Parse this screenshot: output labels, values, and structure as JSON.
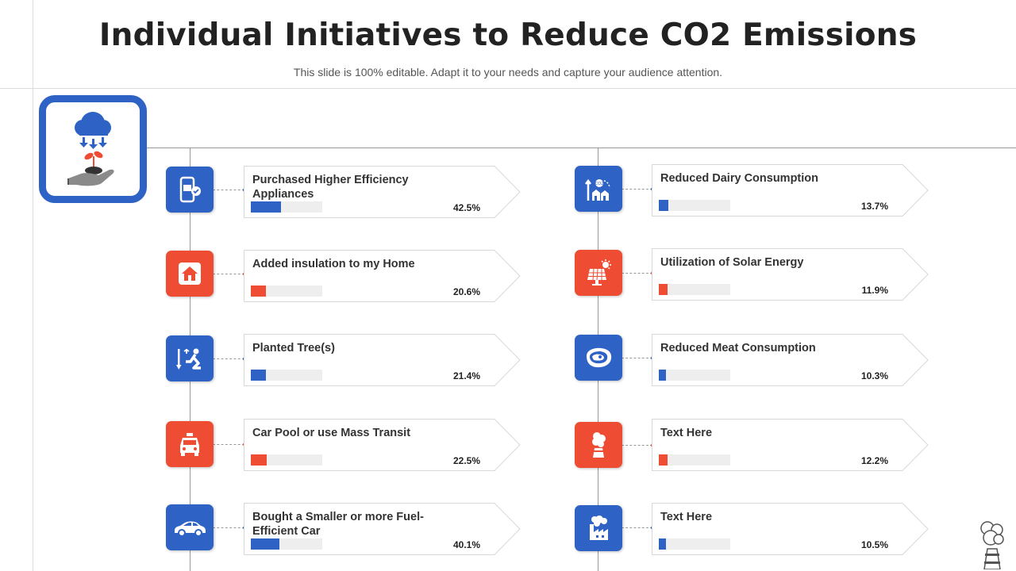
{
  "header": {
    "title": "Individual Initiatives to Reduce CO2 Emissions",
    "subtitle": "This slide is 100% editable. Adapt it to your needs and capture your audience attention."
  },
  "colors": {
    "blue": "#2e62c4",
    "red": "#ee4d34",
    "track": "#eeeeee"
  },
  "hero": {
    "icon": "cloud-rain-plant-hand-icon"
  },
  "initiatives": [
    {
      "label": "Purchased Higher Efficiency Appliances",
      "value": 42.5,
      "percent": "42.5%",
      "color": "blue",
      "icon": "smartphone-icon"
    },
    {
      "label": "Added insulation to my Home",
      "value": 20.6,
      "percent": "20.6%",
      "color": "red",
      "icon": "home-icon"
    },
    {
      "label": "Planted Tree(s)",
      "value": 21.4,
      "percent": "21.4%",
      "color": "blue",
      "icon": "planting-tree-icon"
    },
    {
      "label": "Car Pool or use Mass Transit",
      "value": 22.5,
      "percent": "22.5%",
      "color": "red",
      "icon": "taxi-icon"
    },
    {
      "label": "Bought a  Smaller or more Fuel-Efficient Car",
      "value": 40.1,
      "percent": "40.1%",
      "color": "blue",
      "icon": "car-icon"
    },
    {
      "label": "Reduced Dairy Consumption",
      "value": 13.7,
      "percent": "13.7%",
      "color": "blue",
      "icon": "city-co2-icon"
    },
    {
      "label": "Utilization of Solar Energy",
      "value": 11.9,
      "percent": "11.9%",
      "color": "red",
      "icon": "solar-panel-icon"
    },
    {
      "label": "Reduced Meat Consumption",
      "value": 10.3,
      "percent": "10.3%",
      "color": "blue",
      "icon": "steak-icon"
    },
    {
      "label": "Text Here",
      "value": 12.2,
      "percent": "12.2%",
      "color": "red",
      "icon": "smokestack-icon"
    },
    {
      "label": "Text Here",
      "value": 10.5,
      "percent": "10.5%",
      "color": "blue",
      "icon": "factory-smoke-icon"
    }
  ],
  "decor": {
    "icon": "chimney-smoke-icon"
  }
}
